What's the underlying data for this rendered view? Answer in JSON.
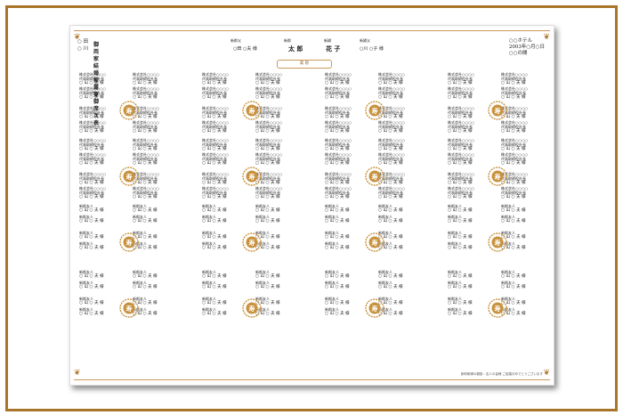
{
  "header": {
    "left_circle1": "○ 田",
    "left_circle2": "○ 川",
    "title": "御両家結婚披露宴御席次表",
    "right_line1": "○○ホテル",
    "right_line2": "2003年○月○日",
    "right_line3": "○○の間"
  },
  "couple": {
    "groom_father_label": "新郎父",
    "groom_label": "新郎",
    "bride_label": "新婦",
    "bride_father_label": "新婦父",
    "groom_father_name": "○田 ○夫 様",
    "groom_name": "太 郎",
    "bride_name": "花 子",
    "bride_father_name": "○川 ○子 様",
    "takasago": "高 砂"
  },
  "guest": {
    "company": "株式会社○○○○",
    "position": "代表取締役社長",
    "name": "○ 山 ○ 夫 様",
    "friend": "新郎友人"
  },
  "table_mark": "寿",
  "footer": "新郎新婦の親族・友人の皆様 ご結婚おめでとうございます"
}
